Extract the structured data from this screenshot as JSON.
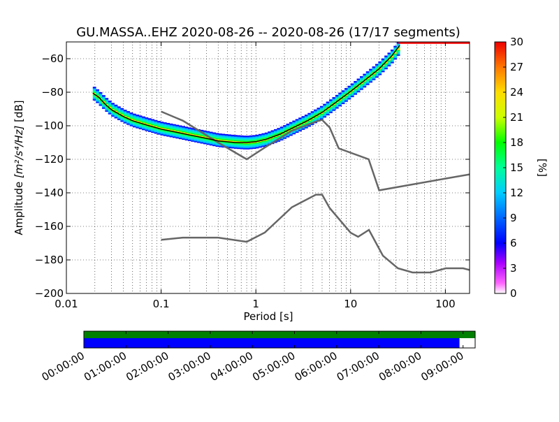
{
  "chart_data": {
    "type": "heatmap",
    "title": "GU.MASSA..EHZ   2020-08-26 -- 2020-08-26  (17/17 segments)",
    "xlabel": "Period [s]",
    "ylabel_prefix": "Amplitude ",
    "ylabel_units": "[m²/s⁴/Hz]",
    "ylabel_suffix": " [dB]",
    "xscale": "log",
    "xlim": [
      0.01,
      180
    ],
    "ylim": [
      -200,
      -50
    ],
    "x_ticks": [
      "0.01",
      "0.1",
      "1",
      "10",
      "100"
    ],
    "y_ticks": [
      "−60",
      "−80",
      "−100",
      "−120",
      "−140",
      "−160",
      "−180",
      "−200"
    ],
    "y_tick_values": [
      -60,
      -80,
      -100,
      -120,
      -140,
      -160,
      -180,
      -200
    ],
    "colorbar": {
      "label": "[%]",
      "range": [
        0,
        30
      ],
      "ticks": [
        "30",
        "27",
        "24",
        "21",
        "18",
        "15",
        "12",
        "9",
        "6",
        "3",
        "0"
      ]
    },
    "psd_band": [
      [
        0.019,
        -80
      ],
      [
        0.022,
        -83
      ],
      [
        0.026,
        -87
      ],
      [
        0.03,
        -90
      ],
      [
        0.04,
        -94
      ],
      [
        0.05,
        -96.5
      ],
      [
        0.07,
        -99
      ],
      [
        0.1,
        -101.5
      ],
      [
        0.15,
        -103.5
      ],
      [
        0.2,
        -105
      ],
      [
        0.3,
        -107
      ],
      [
        0.4,
        -108.5
      ],
      [
        0.6,
        -109.5
      ],
      [
        0.8,
        -110
      ],
      [
        1.0,
        -109.5
      ],
      [
        1.3,
        -108
      ],
      [
        1.8,
        -105
      ],
      [
        2.5,
        -101
      ],
      [
        3.5,
        -97
      ],
      [
        5,
        -92
      ],
      [
        7,
        -86
      ],
      [
        10,
        -79.5
      ],
      [
        14,
        -73
      ],
      [
        20,
        -66
      ],
      [
        27,
        -59
      ],
      [
        33,
        -53
      ]
    ],
    "band_half_width_db": [
      4,
      4,
      4,
      4,
      4,
      4,
      4,
      4,
      4,
      4,
      4,
      4,
      4,
      4,
      4,
      4,
      4,
      4,
      4,
      4,
      4,
      4,
      4,
      4,
      4,
      4
    ],
    "saturation_line": {
      "x": [
        32,
        180
      ],
      "y": [
        -50.5,
        -50.5
      ]
    },
    "mean_curve": [
      [
        0.019,
        -80.5
      ],
      [
        0.022,
        -83
      ],
      [
        0.026,
        -87.5
      ],
      [
        0.03,
        -90.5
      ],
      [
        0.04,
        -94.5
      ],
      [
        0.05,
        -97
      ],
      [
        0.07,
        -99.5
      ],
      [
        0.1,
        -102
      ],
      [
        0.15,
        -104
      ],
      [
        0.2,
        -105.5
      ],
      [
        0.3,
        -107.5
      ],
      [
        0.4,
        -109
      ],
      [
        0.6,
        -110
      ],
      [
        0.8,
        -110
      ],
      [
        1.0,
        -109.5
      ],
      [
        1.3,
        -108
      ],
      [
        1.8,
        -105
      ],
      [
        2.5,
        -101
      ],
      [
        3.5,
        -97
      ],
      [
        5,
        -92
      ],
      [
        7,
        -86
      ],
      [
        10,
        -79.5
      ],
      [
        14,
        -73
      ],
      [
        20,
        -66
      ],
      [
        27,
        -58.5
      ],
      [
        33,
        -52
      ]
    ],
    "nhnm": [
      [
        0.1,
        -91.5
      ],
      [
        0.17,
        -97
      ],
      [
        0.4,
        -110
      ],
      [
        0.8,
        -120
      ],
      [
        1.24,
        -113
      ],
      [
        2.4,
        -103
      ],
      [
        4.3,
        -97.5
      ],
      [
        5.0,
        -96.5
      ],
      [
        6.0,
        -101
      ],
      [
        7.5,
        -113.5
      ],
      [
        15.5,
        -120
      ],
      [
        20,
        -138.5
      ],
      [
        100,
        -131.5
      ],
      [
        180,
        -129
      ]
    ],
    "nlnm": [
      [
        0.1,
        -168
      ],
      [
        0.17,
        -166.7
      ],
      [
        0.4,
        -166.7
      ],
      [
        0.8,
        -169.2
      ],
      [
        1.24,
        -163.7
      ],
      [
        2.4,
        -148.6
      ],
      [
        4.3,
        -141.1
      ],
      [
        5.0,
        -141.1
      ],
      [
        6.0,
        -149
      ],
      [
        10,
        -163.8
      ],
      [
        12,
        -166.2
      ],
      [
        15.6,
        -162.1
      ],
      [
        21.9,
        -177.5
      ],
      [
        31.6,
        -185
      ],
      [
        45,
        -187.5
      ],
      [
        70,
        -187.5
      ],
      [
        101,
        -185
      ],
      [
        154,
        -185
      ],
      [
        180,
        -186
      ]
    ],
    "coverage": {
      "time_ticks": [
        "00:00:00",
        "01:00:00",
        "02:00:00",
        "03:00:00",
        "04:00:00",
        "05:00:00",
        "06:00:00",
        "07:00:00",
        "08:00:00",
        "09:00:00"
      ],
      "data_fraction": 0.96,
      "gap_fraction": 1.0,
      "data_color": "#0000ff",
      "gap_color": "#008000"
    },
    "colors": {
      "nhnm": "#666666",
      "nlnm": "#666666",
      "mean": "#000000",
      "saturation": "#ff0000"
    }
  }
}
